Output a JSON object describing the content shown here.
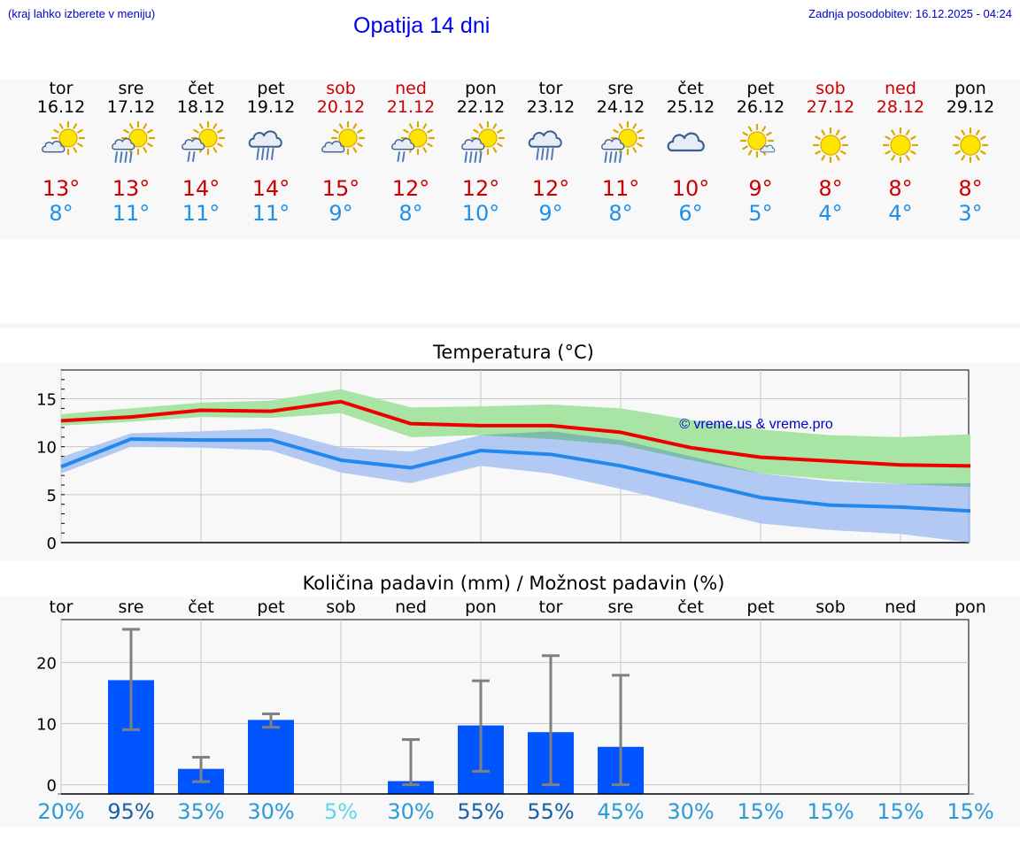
{
  "header": {
    "hint": "(kraj lahko izberete v meniju)",
    "title": "Opatija 14 dni",
    "updated": "Zadnja posodobitev: 16.12.2025 - 04:24"
  },
  "days": [
    {
      "name": "tor",
      "date": "16.12",
      "weekend": false,
      "icon": "sun-cloud",
      "max": "13°",
      "min": "8°"
    },
    {
      "name": "sre",
      "date": "17.12",
      "weekend": false,
      "icon": "sun-cloud-rain",
      "max": "13°",
      "min": "11°"
    },
    {
      "name": "čet",
      "date": "18.12",
      "weekend": false,
      "icon": "sun-cloud-drizzle",
      "max": "14°",
      "min": "11°"
    },
    {
      "name": "pet",
      "date": "19.12",
      "weekend": false,
      "icon": "cloud-rain",
      "max": "14°",
      "min": "11°"
    },
    {
      "name": "sob",
      "date": "20.12",
      "weekend": true,
      "icon": "sun-cloud",
      "max": "15°",
      "min": "9°"
    },
    {
      "name": "ned",
      "date": "21.12",
      "weekend": true,
      "icon": "sun-cloud-drizzle",
      "max": "12°",
      "min": "8°"
    },
    {
      "name": "pon",
      "date": "22.12",
      "weekend": false,
      "icon": "sun-cloud-rain",
      "max": "12°",
      "min": "10°"
    },
    {
      "name": "tor",
      "date": "23.12",
      "weekend": false,
      "icon": "cloud-rain",
      "max": "12°",
      "min": "9°"
    },
    {
      "name": "sre",
      "date": "24.12",
      "weekend": false,
      "icon": "sun-cloud-rain",
      "max": "11°",
      "min": "8°"
    },
    {
      "name": "čet",
      "date": "25.12",
      "weekend": false,
      "icon": "cloud",
      "max": "10°",
      "min": "6°"
    },
    {
      "name": "pet",
      "date": "26.12",
      "weekend": false,
      "icon": "sun-small-cloud",
      "max": "9°",
      "min": "5°"
    },
    {
      "name": "sob",
      "date": "27.12",
      "weekend": true,
      "icon": "sun",
      "max": "8°",
      "min": "4°"
    },
    {
      "name": "ned",
      "date": "28.12",
      "weekend": true,
      "icon": "sun",
      "max": "8°",
      "min": "4°"
    },
    {
      "name": "pon",
      "date": "29.12",
      "weekend": false,
      "icon": "sun",
      "max": "8°",
      "min": "3°"
    }
  ],
  "colors": {
    "max_text": "#cc0000",
    "min_text": "#1e90e8",
    "max_line": "#ee0000",
    "min_line": "#2288ee",
    "max_band": "#a8e4a4",
    "min_band": "#aac4f2",
    "overlap_band": "#7cbca8",
    "bar": "#0055ff",
    "errbar": "#808080",
    "sun": "#ffe400",
    "sun_outline": "#d9a800",
    "cloud": "#e8edf5",
    "cloud_outline": "#3d5f8f",
    "rain": "#4f79b8"
  },
  "chart_data": [
    {
      "type": "line",
      "title": "Temperatura (°C)",
      "watermark": "© vreme.us & vreme.pro",
      "ylim": [
        0,
        18
      ],
      "yticks": [
        0,
        5,
        10,
        15
      ],
      "x": [
        0,
        1,
        2,
        3,
        4,
        5,
        6,
        7,
        8,
        9,
        10,
        11,
        12,
        13
      ],
      "series": [
        {
          "name": "max",
          "values": [
            12.7,
            13.1,
            13.8,
            13.7,
            14.7,
            12.4,
            12.2,
            12.2,
            11.5,
            9.9,
            8.9,
            8.5,
            8.1,
            8.0
          ],
          "band_low": [
            12.2,
            12.6,
            13.1,
            13.0,
            13.5,
            11.0,
            11.2,
            10.8,
            10.2,
            8.6,
            7.2,
            6.6,
            6.1,
            5.8
          ],
          "band_high": [
            13.4,
            14.0,
            14.6,
            14.8,
            16.0,
            14.1,
            14.2,
            14.4,
            14.0,
            12.8,
            11.8,
            11.2,
            11.0,
            11.3
          ]
        },
        {
          "name": "min",
          "values": [
            7.9,
            10.8,
            10.7,
            10.7,
            8.6,
            7.8,
            9.6,
            9.2,
            8.0,
            6.4,
            4.7,
            3.9,
            3.7,
            3.3
          ],
          "band_low": [
            7.2,
            10.0,
            9.9,
            9.6,
            7.3,
            6.2,
            8.0,
            7.2,
            5.6,
            3.8,
            2.0,
            1.3,
            0.9,
            0.0
          ],
          "band_high": [
            8.9,
            11.4,
            11.6,
            11.9,
            9.9,
            9.5,
            11.2,
            11.6,
            10.7,
            9.0,
            7.2,
            6.4,
            6.1,
            6.2
          ]
        }
      ]
    },
    {
      "type": "bar",
      "title": "Količina padavin (mm) / Možnost padavin (%)",
      "ylim": [
        -1.5,
        27
      ],
      "yticks": [
        0,
        10,
        20
      ],
      "categories": [
        "tor",
        "sre",
        "čet",
        "pet",
        "sob",
        "ned",
        "pon",
        "tor",
        "sre",
        "čet",
        "pet",
        "sob",
        "ned",
        "pon"
      ],
      "values": [
        0,
        17.1,
        2.6,
        10.6,
        0,
        0.6,
        9.7,
        8.6,
        6.2,
        0,
        0,
        0,
        0,
        0
      ],
      "err_low": [
        0,
        9.0,
        0.5,
        9.4,
        0,
        0,
        2.2,
        0,
        0,
        0,
        0,
        0,
        0,
        0
      ],
      "err_high": [
        0,
        25.4,
        4.5,
        11.6,
        0,
        7.4,
        17.0,
        21.1,
        17.9,
        0,
        0,
        0,
        0,
        0
      ],
      "probability": [
        "20%",
        "95%",
        "35%",
        "30%",
        "5%",
        "30%",
        "55%",
        "55%",
        "45%",
        "30%",
        "15%",
        "15%",
        "15%",
        "15%"
      ],
      "probability_colors": [
        "#2a9bd8",
        "#1a5fa8",
        "#2a9bd8",
        "#2a9bd8",
        "#5fd6e8",
        "#2a9bd8",
        "#1a5fa8",
        "#1a5fa8",
        "#2a9bd8",
        "#2a9bd8",
        "#2a9bd8",
        "#2a9bd8",
        "#2a9bd8",
        "#2a9bd8"
      ]
    }
  ]
}
